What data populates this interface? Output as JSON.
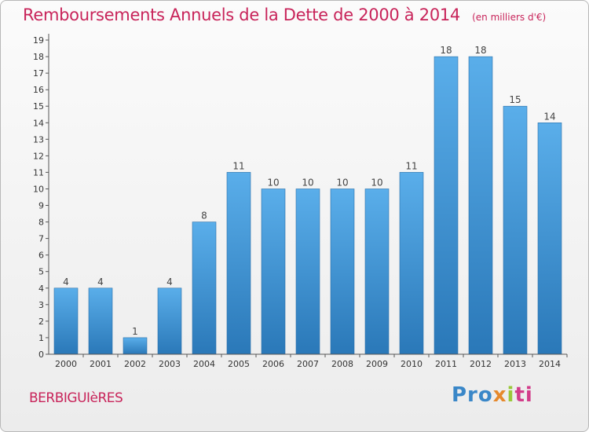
{
  "header": {
    "title": "Remboursements Annuels de la Dette de 2000 à 2014",
    "unit": "(en milliers d'€)"
  },
  "footer": {
    "commune": "BERBIGUIèRES",
    "logo": {
      "p1": "Pro",
      "p2": "x",
      "p3": "i",
      "p4": "ti"
    }
  },
  "colors": {
    "title": "#c8245a",
    "bar_light": "#5aaeea",
    "bar_dark": "#2a78b8",
    "axis": "#555555"
  },
  "chart_data": {
    "type": "bar",
    "title": "Remboursements Annuels de la Dette de 2000 à 2014",
    "ylabel": "",
    "xlabel": "",
    "ylim": [
      0,
      19
    ],
    "yticks": [
      0,
      1,
      2,
      3,
      4,
      5,
      6,
      7,
      8,
      9,
      10,
      11,
      12,
      13,
      14,
      15,
      16,
      17,
      18,
      19
    ],
    "categories": [
      "2000",
      "2001",
      "2002",
      "2003",
      "2004",
      "2005",
      "2006",
      "2007",
      "2008",
      "2009",
      "2010",
      "2011",
      "2012",
      "2013",
      "2014"
    ],
    "values": [
      4,
      4,
      1,
      4,
      8,
      11,
      10,
      10,
      10,
      10,
      11,
      18,
      18,
      15,
      14
    ],
    "grid": false,
    "data_labels": true
  }
}
